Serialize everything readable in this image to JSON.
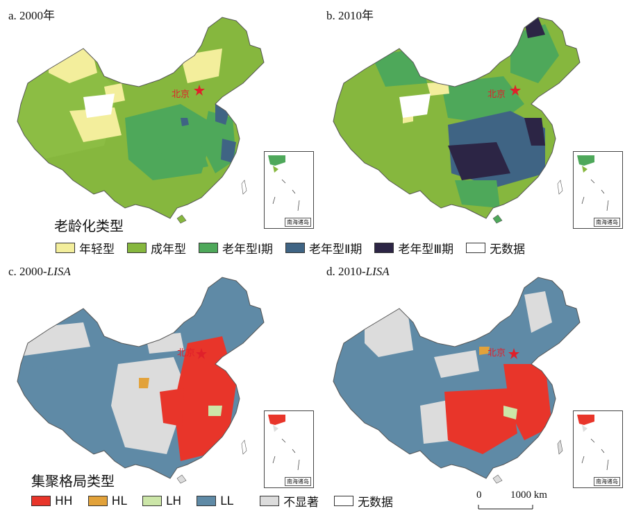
{
  "panels": [
    {
      "id": "a",
      "title_prefix": "a. ",
      "title_main": "2000年",
      "title_italic": ""
    },
    {
      "id": "b",
      "title_prefix": "b. ",
      "title_main": "2010年",
      "title_italic": ""
    },
    {
      "id": "c",
      "title_prefix": "c. ",
      "title_main": "2000-",
      "title_italic": "LISA"
    },
    {
      "id": "d",
      "title_prefix": "d. ",
      "title_main": "2010-",
      "title_italic": "LISA"
    }
  ],
  "capital_label": "北京",
  "inset_label": "南海诸岛",
  "legend_aging": {
    "title": "老龄化类型",
    "items": [
      {
        "label": "年轻型",
        "color": "#f3ee9c"
      },
      {
        "label": "成年型",
        "color": "#86b73e"
      },
      {
        "label": "老年型Ⅰ期",
        "color": "#4ea85a"
      },
      {
        "label": "老年型Ⅱ期",
        "color": "#3f6484"
      },
      {
        "label": "老年型Ⅲ期",
        "color": "#2c2545"
      },
      {
        "label": "无数据",
        "color": "#ffffff"
      }
    ]
  },
  "legend_lisa": {
    "title": "集聚格局类型",
    "items": [
      {
        "label": "HH",
        "color": "#e8352a"
      },
      {
        "label": "HL",
        "color": "#e2a23a"
      },
      {
        "label": "LH",
        "color": "#cce6a8"
      },
      {
        "label": "LL",
        "color": "#5f8aa6"
      },
      {
        "label": "不显著",
        "color": "#dcdcdc"
      },
      {
        "label": "无数据",
        "color": "#ffffff"
      }
    ]
  },
  "scale": {
    "zero": "0",
    "value": "1000 km"
  }
}
